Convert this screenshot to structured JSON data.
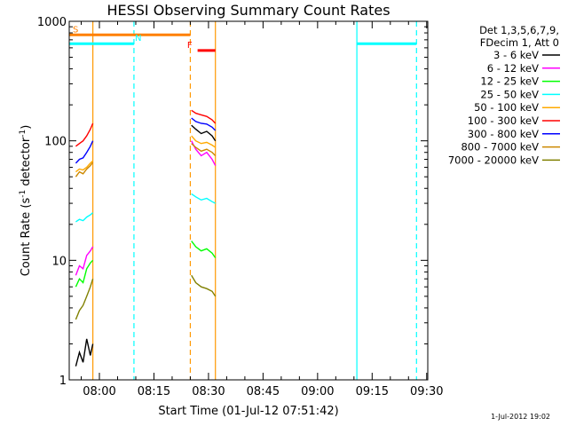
{
  "chart_data": {
    "type": "line",
    "title": "HESSI Observing Summary Count Rates",
    "xlabel": "Start Time (01-Jul-12 07:51:42)",
    "ylabel_parts": [
      "Count Rate (s",
      "-1",
      " detector",
      "-1",
      ")"
    ],
    "ylabel": "Count Rate (s-1 detector-1)",
    "yscale": "log",
    "ylim": [
      1,
      1000
    ],
    "xlim_minutes_after_0800": [
      -8.3,
      90.3
    ],
    "x_ticks": [
      "08:00",
      "08:15",
      "08:30",
      "08:45",
      "09:00",
      "09:15",
      "09:30"
    ],
    "x_tick_minutes": [
      0,
      15,
      30,
      45,
      60,
      75,
      90
    ],
    "y_ticks": [
      "1",
      "10",
      "100",
      "1000"
    ],
    "y_tick_values": [
      1,
      10,
      100,
      1000
    ],
    "legend_header": [
      "Det 1,3,5,6,7,9,",
      "FDecim 1, Att 0"
    ],
    "data_gap_lines": [
      {
        "minute": -1.8,
        "style": "solid",
        "color": "#ff9900"
      },
      {
        "minute": 9.5,
        "style": "dashed",
        "color": "#00ffff"
      },
      {
        "minute": 25.0,
        "style": "dashed",
        "color": "#ff9900"
      },
      {
        "minute": 31.9,
        "style": "solid",
        "color": "#ff9900"
      },
      {
        "minute": 70.8,
        "style": "solid",
        "color": "#00ffff"
      },
      {
        "minute": 87.2,
        "style": "dashed",
        "color": "#00ffff"
      }
    ],
    "flag_bars": [
      {
        "label": "S",
        "color": "#ff8000",
        "y": 770,
        "x_start": -8.3,
        "x_end": 25.0
      },
      {
        "label": "N",
        "color": "#00ffff",
        "y": 650,
        "x_start": -8.3,
        "x_end": 9.5
      },
      {
        "label": "",
        "color": "#00ffff",
        "y": 650,
        "x_start": 70.8,
        "x_end": 87.2
      },
      {
        "label": "F",
        "color": "#ff0000",
        "y": 570,
        "x_start": 27.0,
        "x_end": 31.9
      }
    ],
    "series": [
      {
        "name": "3 - 6 keV",
        "color": "#000000",
        "segments": [
          {
            "x": [
              -6.5,
              -5.5,
              -4.5,
              -3.5,
              -2.5,
              -1.8
            ],
            "y": [
              1.3,
              1.7,
              1.4,
              2.2,
              1.6,
              2.0
            ]
          },
          {
            "x": [
              25.3,
              26.5,
              28.0,
              29.5,
              31.0,
              31.9
            ],
            "y": [
              135,
              125,
              115,
              120,
              110,
              100
            ]
          }
        ]
      },
      {
        "name": "6 - 12 keV",
        "color": "#ff00ff",
        "segments": [
          {
            "x": [
              -6.5,
              -5.5,
              -4.5,
              -3.5,
              -2.5,
              -1.8
            ],
            "y": [
              7.5,
              9.0,
              8.5,
              11.0,
              12.0,
              13.0
            ]
          },
          {
            "x": [
              25.3,
              26.5,
              28.0,
              29.5,
              31.0,
              31.9
            ],
            "y": [
              100,
              85,
              75,
              80,
              70,
              62
            ]
          }
        ]
      },
      {
        "name": "12 - 25 keV",
        "color": "#00ff00",
        "segments": [
          {
            "x": [
              -6.5,
              -5.5,
              -4.5,
              -3.5,
              -2.5,
              -1.8
            ],
            "y": [
              6.0,
              7.0,
              6.5,
              8.5,
              9.5,
              10.0
            ]
          },
          {
            "x": [
              25.3,
              26.5,
              28.0,
              29.5,
              31.0,
              31.9
            ],
            "y": [
              14.5,
              13.0,
              12.0,
              12.5,
              11.5,
              10.5
            ]
          }
        ]
      },
      {
        "name": "25 - 50 keV",
        "color": "#00ffff",
        "segments": [
          {
            "x": [
              -6.5,
              -5.5,
              -4.5,
              -3.5,
              -2.5,
              -1.8
            ],
            "y": [
              21,
              22,
              21.5,
              23,
              24,
              25
            ]
          },
          {
            "x": [
              25.3,
              26.5,
              28.0,
              29.5,
              31.0,
              31.9
            ],
            "y": [
              36,
              34,
              32,
              33,
              31,
              30
            ]
          }
        ]
      },
      {
        "name": "50 - 100 keV",
        "color": "#ffaa00",
        "segments": [
          {
            "x": [
              -6.5,
              -5.5,
              -4.5,
              -3.5,
              -2.5,
              -1.8
            ],
            "y": [
              55,
              58,
              57,
              60,
              65,
              68
            ]
          },
          {
            "x": [
              25.3,
              26.5,
              28.0,
              29.5,
              31.0,
              31.9
            ],
            "y": [
              110,
              100,
              95,
              97,
              92,
              88
            ]
          }
        ]
      },
      {
        "name": "100 - 300 keV",
        "color": "#ff0000",
        "segments": [
          {
            "x": [
              -6.5,
              -5.5,
              -4.5,
              -3.5,
              -2.5,
              -1.8
            ],
            "y": [
              90,
              95,
              100,
              110,
              125,
              140
            ]
          },
          {
            "x": [
              25.3,
              26.5,
              28.0,
              29.5,
              31.0,
              31.9
            ],
            "y": [
              180,
              170,
              165,
              160,
              150,
              140
            ]
          }
        ]
      },
      {
        "name": "300 - 800 keV",
        "color": "#0000ff",
        "segments": [
          {
            "x": [
              -6.5,
              -5.5,
              -4.5,
              -3.5,
              -2.5,
              -1.8
            ],
            "y": [
              65,
              70,
              72,
              80,
              90,
              100
            ]
          },
          {
            "x": [
              25.3,
              26.5,
              28.0,
              29.5,
              31.0,
              31.9
            ],
            "y": [
              155,
              145,
              140,
              138,
              130,
              122
            ]
          }
        ]
      },
      {
        "name": "800 - 7000 keV",
        "color": "#cc8800",
        "segments": [
          {
            "x": [
              -6.5,
              -5.5,
              -4.5,
              -3.5,
              -2.5,
              -1.8
            ],
            "y": [
              50,
              55,
              53,
              58,
              62,
              66
            ]
          },
          {
            "x": [
              25.3,
              26.5,
              28.0,
              29.5,
              31.0,
              31.9
            ],
            "y": [
              95,
              88,
              82,
              85,
              80,
              75
            ]
          }
        ]
      },
      {
        "name": "7000 - 20000 keV",
        "color": "#808000",
        "segments": [
          {
            "x": [
              -6.5,
              -5.5,
              -4.5,
              -3.5,
              -2.5,
              -1.8
            ],
            "y": [
              3.2,
              3.8,
              4.2,
              5.0,
              6.0,
              7.0
            ]
          },
          {
            "x": [
              25.3,
              26.5,
              28.0,
              29.5,
              31.0,
              31.9
            ],
            "y": [
              7.5,
              6.5,
              6.0,
              5.8,
              5.5,
              5.0
            ]
          }
        ]
      }
    ]
  },
  "timestamp": "1-Jul-2012 19:02"
}
